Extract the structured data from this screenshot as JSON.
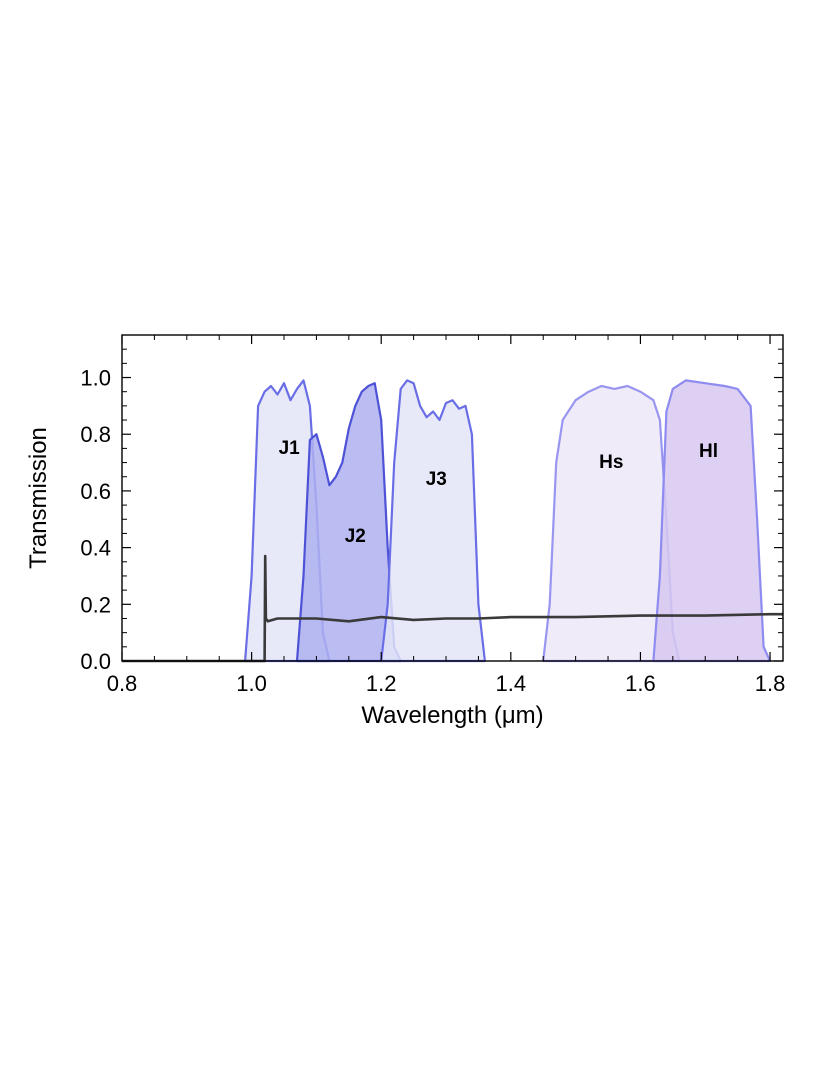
{
  "chart_data": {
    "type": "area",
    "xlabel": "Wavelength (μm)",
    "ylabel": "Transmission",
    "xlim": [
      0.8,
      1.82
    ],
    "ylim": [
      0.0,
      1.15
    ],
    "x_ticks": [
      0.8,
      1.0,
      1.2,
      1.4,
      1.6,
      1.8
    ],
    "x_tick_labels": [
      "0.8",
      "1.0",
      "1.2",
      "1.4",
      "1.6",
      "1.8"
    ],
    "y_ticks": [
      0.0,
      0.2,
      0.4,
      0.6,
      0.8,
      1.0
    ],
    "y_tick_labels": [
      "0.0",
      "0.2",
      "0.4",
      "0.6",
      "0.8",
      "1.0"
    ],
    "grid": false,
    "series": [
      {
        "name": "J1",
        "color": "#6a6ee6",
        "fill": "#e3e5f8",
        "x": [
          0.99,
          1.0,
          1.01,
          1.02,
          1.03,
          1.04,
          1.05,
          1.06,
          1.07,
          1.08,
          1.09,
          1.1,
          1.11,
          1.12
        ],
        "y": [
          0.0,
          0.3,
          0.9,
          0.95,
          0.97,
          0.94,
          0.98,
          0.92,
          0.96,
          0.99,
          0.9,
          0.55,
          0.1,
          0.0
        ]
      },
      {
        "name": "J2",
        "color": "#4e52d6",
        "fill": "#aeb0f0",
        "x": [
          1.07,
          1.08,
          1.09,
          1.1,
          1.11,
          1.12,
          1.13,
          1.14,
          1.15,
          1.16,
          1.17,
          1.18,
          1.19,
          1.2,
          1.21,
          1.22,
          1.23
        ],
        "y": [
          0.0,
          0.3,
          0.78,
          0.8,
          0.72,
          0.62,
          0.65,
          0.7,
          0.82,
          0.9,
          0.95,
          0.97,
          0.98,
          0.85,
          0.4,
          0.05,
          0.0
        ]
      },
      {
        "name": "J3",
        "color": "#6a6ee6",
        "fill": "#e3e5f8",
        "x": [
          1.2,
          1.21,
          1.22,
          1.23,
          1.24,
          1.25,
          1.26,
          1.27,
          1.28,
          1.29,
          1.3,
          1.31,
          1.32,
          1.33,
          1.34,
          1.35,
          1.36
        ],
        "y": [
          0.0,
          0.2,
          0.7,
          0.96,
          0.99,
          0.98,
          0.9,
          0.86,
          0.88,
          0.85,
          0.91,
          0.92,
          0.89,
          0.9,
          0.8,
          0.2,
          0.0
        ]
      },
      {
        "name": "Hs",
        "color": "#9896f0",
        "fill": "#ece8f8",
        "x": [
          1.45,
          1.46,
          1.47,
          1.48,
          1.5,
          1.52,
          1.54,
          1.56,
          1.58,
          1.6,
          1.62,
          1.63,
          1.64,
          1.65,
          1.66
        ],
        "y": [
          0.0,
          0.2,
          0.7,
          0.85,
          0.92,
          0.95,
          0.97,
          0.96,
          0.97,
          0.95,
          0.92,
          0.85,
          0.5,
          0.1,
          0.0
        ]
      },
      {
        "name": "Hl",
        "color": "#8e8cf0",
        "fill": "#d7c8f0",
        "x": [
          1.62,
          1.63,
          1.64,
          1.65,
          1.67,
          1.7,
          1.73,
          1.75,
          1.77,
          1.78,
          1.79,
          1.8
        ],
        "y": [
          0.0,
          0.3,
          0.88,
          0.96,
          0.99,
          0.98,
          0.97,
          0.96,
          0.9,
          0.5,
          0.05,
          0.0
        ]
      },
      {
        "name": "",
        "color": "#3a3a3a",
        "x": [
          0.8,
          1.0,
          1.02,
          1.021,
          1.022,
          1.025,
          1.04,
          1.1,
          1.15,
          1.2,
          1.25,
          1.3,
          1.35,
          1.4,
          1.5,
          1.6,
          1.7,
          1.8,
          1.82
        ],
        "y": [
          0.0,
          0.0,
          0.0,
          0.37,
          0.15,
          0.14,
          0.15,
          0.15,
          0.14,
          0.155,
          0.145,
          0.15,
          0.15,
          0.155,
          0.155,
          0.16,
          0.16,
          0.165,
          0.165
        ]
      }
    ],
    "annotations": [
      {
        "text": "J1",
        "x": 1.058,
        "y": 0.73
      },
      {
        "text": "J2",
        "x": 1.16,
        "y": 0.42
      },
      {
        "text": "J3",
        "x": 1.285,
        "y": 0.62
      },
      {
        "text": "Hs",
        "x": 1.555,
        "y": 0.68
      },
      {
        "text": "Hl",
        "x": 1.705,
        "y": 0.72
      }
    ]
  }
}
